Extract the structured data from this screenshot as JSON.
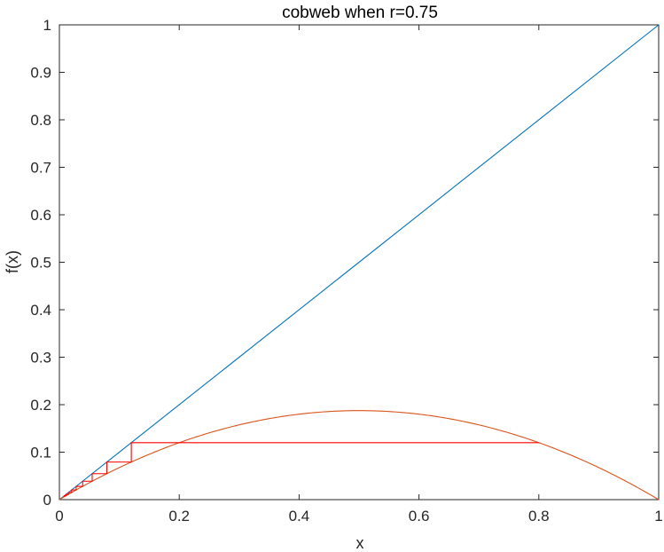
{
  "chart_data": {
    "type": "line",
    "title": "cobweb when r=0.75",
    "xlabel": "x",
    "ylabel": "f(x)",
    "xlim": [
      0,
      1
    ],
    "ylim": [
      0,
      1
    ],
    "grid": false,
    "x_ticks": [
      0,
      0.2,
      0.4,
      0.6,
      0.8,
      1
    ],
    "x_tick_labels": [
      "0",
      "0.2",
      "0.4",
      "0.6",
      "0.8",
      "1"
    ],
    "y_ticks": [
      0,
      0.1,
      0.2,
      0.3,
      0.4,
      0.5,
      0.6,
      0.7,
      0.8,
      0.9,
      1
    ],
    "y_tick_labels": [
      "0",
      "0.1",
      "0.2",
      "0.3",
      "0.4",
      "0.5",
      "0.6",
      "0.7",
      "0.8",
      "0.9",
      "1"
    ],
    "r": 0.75,
    "series": [
      {
        "key": "identity",
        "color": "#0072BD",
        "x": [
          0,
          1
        ],
        "y": [
          0,
          1
        ]
      },
      {
        "key": "logistic",
        "color": "#D95319",
        "x": [
          0,
          0.1,
          0.2,
          0.3,
          0.4,
          0.5,
          0.6,
          0.7,
          0.8,
          0.9,
          1
        ],
        "y": [
          0,
          0.0675,
          0.12,
          0.1575,
          0.18,
          0.1875,
          0.18,
          0.1575,
          0.12,
          0.0675,
          0
        ]
      },
      {
        "key": "cobweb",
        "color": "#FF0000",
        "x": [
          0.8,
          0.12,
          0.12,
          0.0792,
          0.0792,
          0.0547,
          0.0547,
          0.0388,
          0.0388,
          0.028,
          0.028,
          0.0204,
          0.0204,
          0.015,
          0.015,
          0.011,
          0.011,
          0.0082,
          0.0082
        ],
        "y": [
          0.12,
          0.12,
          0.0792,
          0.0792,
          0.0547,
          0.0547,
          0.0388,
          0.0388,
          0.028,
          0.028,
          0.0204,
          0.0204,
          0.015,
          0.015,
          0.011,
          0.011,
          0.0082,
          0.0082,
          0.0061
        ]
      }
    ]
  }
}
